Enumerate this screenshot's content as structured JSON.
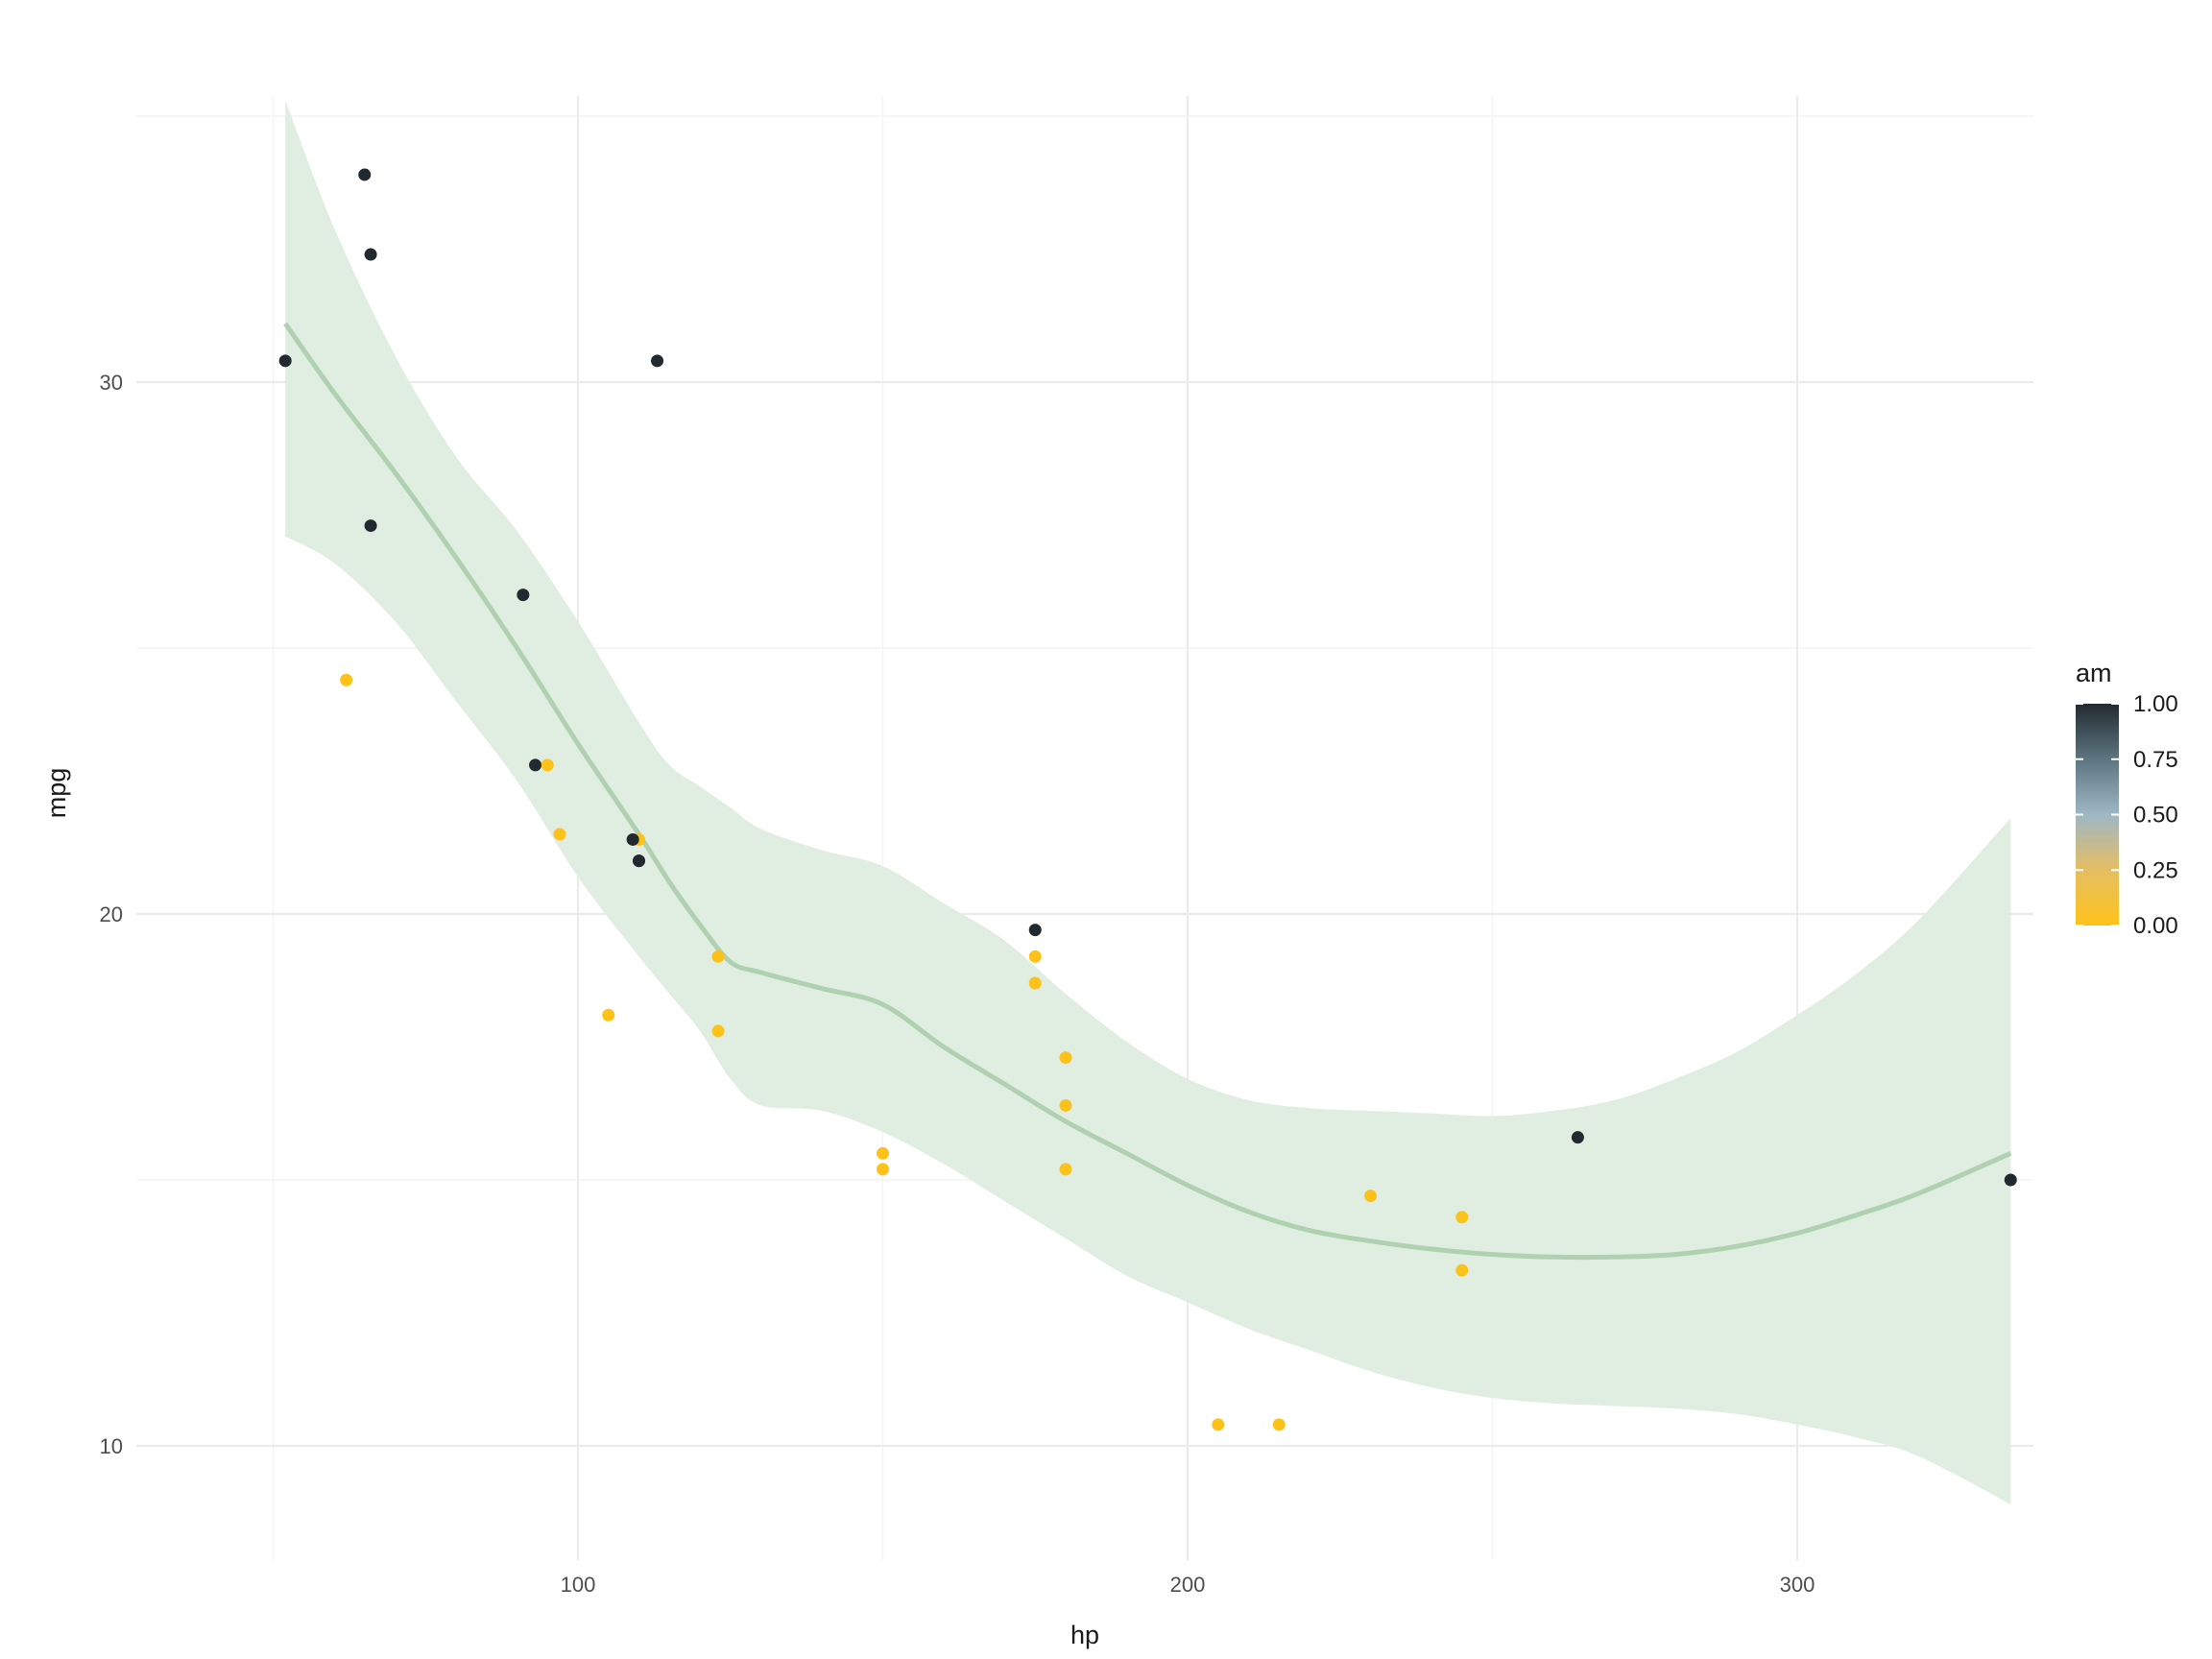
{
  "chart_data": {
    "type": "scatter",
    "title": "",
    "xlabel": "hp",
    "ylabel": "mpg",
    "xlim": [
      40,
      350
    ],
    "ylim": [
      8.3,
      35.5
    ],
    "x_ticks": [
      {
        "value": 100,
        "label": "100"
      },
      {
        "value": 200,
        "label": "200"
      },
      {
        "value": 300,
        "label": "300"
      }
    ],
    "y_ticks": [
      {
        "value": 10,
        "label": "10"
      },
      {
        "value": 20,
        "label": "20"
      },
      {
        "value": 30,
        "label": "30"
      }
    ],
    "grid": true,
    "points": [
      {
        "x": 110,
        "y": 21.0,
        "am": 1
      },
      {
        "x": 110,
        "y": 21.0,
        "am": 1
      },
      {
        "x": 93,
        "y": 22.8,
        "am": 1
      },
      {
        "x": 110,
        "y": 21.4,
        "am": 0
      },
      {
        "x": 175,
        "y": 18.7,
        "am": 0
      },
      {
        "x": 105,
        "y": 18.1,
        "am": 0
      },
      {
        "x": 245,
        "y": 14.3,
        "am": 0
      },
      {
        "x": 62,
        "y": 24.4,
        "am": 0
      },
      {
        "x": 95,
        "y": 22.8,
        "am": 0
      },
      {
        "x": 123,
        "y": 19.2,
        "am": 0
      },
      {
        "x": 123,
        "y": 17.8,
        "am": 0
      },
      {
        "x": 180,
        "y": 16.4,
        "am": 0
      },
      {
        "x": 180,
        "y": 17.3,
        "am": 0
      },
      {
        "x": 180,
        "y": 15.2,
        "am": 0
      },
      {
        "x": 205,
        "y": 10.4,
        "am": 0
      },
      {
        "x": 215,
        "y": 10.4,
        "am": 0
      },
      {
        "x": 230,
        "y": 14.7,
        "am": 0
      },
      {
        "x": 66,
        "y": 32.4,
        "am": 1
      },
      {
        "x": 52,
        "y": 30.4,
        "am": 1
      },
      {
        "x": 65,
        "y": 33.9,
        "am": 1
      },
      {
        "x": 97,
        "y": 21.5,
        "am": 0
      },
      {
        "x": 150,
        "y": 15.5,
        "am": 0
      },
      {
        "x": 150,
        "y": 15.2,
        "am": 0
      },
      {
        "x": 245,
        "y": 13.3,
        "am": 0
      },
      {
        "x": 175,
        "y": 19.2,
        "am": 0
      },
      {
        "x": 66,
        "y": 27.3,
        "am": 1
      },
      {
        "x": 91,
        "y": 26.0,
        "am": 1
      },
      {
        "x": 113,
        "y": 30.4,
        "am": 1
      },
      {
        "x": 264,
        "y": 15.8,
        "am": 1
      },
      {
        "x": 175,
        "y": 19.7,
        "am": 1
      },
      {
        "x": 335,
        "y": 15.0,
        "am": 1
      },
      {
        "x": 109,
        "y": 21.4,
        "am": 1
      }
    ],
    "smooth": {
      "x": [
        52,
        60,
        70,
        80,
        90,
        100,
        110,
        115,
        120,
        125,
        130,
        140,
        150,
        160,
        170,
        180,
        190,
        200,
        210,
        220,
        230,
        240,
        250,
        260,
        270,
        280,
        290,
        300,
        310,
        320,
        335
      ],
      "y": [
        31.1,
        29.8,
        28.3,
        26.7,
        25.0,
        23.2,
        21.5,
        20.6,
        19.8,
        19.1,
        18.9,
        18.6,
        18.3,
        17.5,
        16.8,
        16.1,
        15.5,
        14.9,
        14.4,
        14.05,
        13.85,
        13.7,
        13.6,
        13.55,
        13.55,
        13.6,
        13.75,
        14.0,
        14.35,
        14.75,
        15.5
      ],
      "ymin": [
        27.1,
        26.6,
        25.5,
        24.0,
        22.5,
        20.7,
        19.2,
        18.5,
        17.8,
        16.9,
        16.4,
        16.3,
        15.9,
        15.3,
        14.6,
        13.9,
        13.2,
        12.7,
        12.2,
        11.8,
        11.4,
        11.1,
        10.9,
        10.8,
        10.75,
        10.7,
        10.6,
        10.4,
        10.15,
        9.8,
        8.9
      ],
      "ymax": [
        35.3,
        32.9,
        30.5,
        28.6,
        27.2,
        25.5,
        23.6,
        22.8,
        22.4,
        22.0,
        21.6,
        21.2,
        20.9,
        20.2,
        19.5,
        18.5,
        17.6,
        16.9,
        16.5,
        16.35,
        16.3,
        16.25,
        16.2,
        16.3,
        16.5,
        16.9,
        17.4,
        18.1,
        18.9,
        19.9,
        21.8
      ]
    },
    "legend": {
      "title": "am",
      "placement": "right",
      "breaks": [
        {
          "value": 1.0,
          "label": "1.00"
        },
        {
          "value": 0.75,
          "label": "0.75"
        },
        {
          "value": 0.5,
          "label": "0.50"
        },
        {
          "value": 0.25,
          "label": "0.25"
        },
        {
          "value": 0.0,
          "label": "0.00"
        }
      ],
      "low_color": "#FDC219",
      "mid_color": "#9DB7C4",
      "high_color": "#222A30"
    },
    "colors": {
      "smooth_line": "#AFD1B0",
      "smooth_band": "#E0EEE1",
      "grid": "#EBEBEB",
      "gradient": [
        "#FDC219",
        "#E5BE62",
        "#9DB7C4",
        "#5D7580",
        "#222A30"
      ]
    }
  }
}
